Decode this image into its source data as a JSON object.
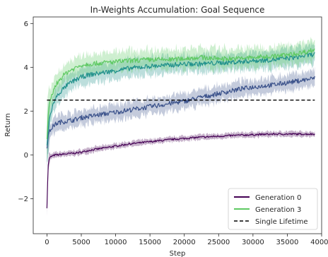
{
  "chart_data": {
    "type": "line",
    "title": "In-Weights Accumulation: Goal Sequence",
    "xlabel": "Step",
    "ylabel": "Return",
    "xlim": [
      -2000,
      40000
    ],
    "ylim": [
      -3.6,
      6.3
    ],
    "xticks": [
      0,
      5000,
      10000,
      15000,
      20000,
      25000,
      30000,
      35000,
      40000
    ],
    "xtick_labels": [
      "0",
      "5000",
      "10000",
      "15000",
      "20000",
      "25000",
      "30000",
      "35000",
      "40000"
    ],
    "yticks": [
      -2,
      0,
      2,
      4,
      6
    ],
    "ytick_labels": [
      "−2",
      "0",
      "2",
      "4",
      "6"
    ],
    "grid": false,
    "legend_position": "lower-right",
    "legend": [
      "Generation 0",
      "Generation 3",
      "Single Lifetime"
    ],
    "series": [
      {
        "name": "Generation 0",
        "in_legend": true,
        "color": "#440154",
        "band_width": 0.12,
        "x": [
          0,
          150,
          300,
          500,
          800,
          1200,
          1600,
          2000,
          3000,
          4000,
          5000,
          6000,
          8000,
          10000,
          12000,
          15000,
          18000,
          20000,
          22000,
          25000,
          28000,
          30000,
          33000,
          36000,
          39000
        ],
        "values": [
          -2.4,
          -0.6,
          -0.2,
          -0.1,
          -0.05,
          0.0,
          0.0,
          0.02,
          0.05,
          0.08,
          0.12,
          0.2,
          0.3,
          0.4,
          0.5,
          0.6,
          0.7,
          0.75,
          0.8,
          0.85,
          0.9,
          0.92,
          0.95,
          0.95,
          0.95
        ]
      },
      {
        "name": "",
        "in_legend": false,
        "color": "#3b528b",
        "band_width": 0.35,
        "x": [
          0,
          150,
          300,
          600,
          1000,
          1500,
          2000,
          3000,
          4000,
          5000,
          6000,
          8000,
          10000,
          12000,
          15000,
          18000,
          20000,
          22000,
          25000,
          28000,
          30000,
          33000,
          36000,
          39000
        ],
        "values": [
          0.4,
          0.8,
          1.0,
          1.2,
          1.35,
          1.45,
          1.5,
          1.55,
          1.6,
          1.7,
          1.75,
          1.85,
          1.95,
          2.05,
          2.2,
          2.35,
          2.45,
          2.6,
          2.8,
          3.0,
          3.1,
          3.2,
          3.35,
          3.5
        ]
      },
      {
        "name": "",
        "in_legend": false,
        "color": "#21918c",
        "band_width": 0.4,
        "x": [
          0,
          150,
          300,
          600,
          1000,
          1500,
          2000,
          3000,
          4000,
          5000,
          6000,
          8000,
          10000,
          12000,
          15000,
          18000,
          20000,
          22000,
          25000,
          28000,
          30000,
          33000,
          36000,
          39000
        ],
        "values": [
          0.5,
          1.0,
          1.5,
          2.0,
          2.4,
          2.7,
          2.9,
          3.2,
          3.4,
          3.55,
          3.65,
          3.75,
          3.85,
          3.95,
          4.05,
          4.1,
          4.15,
          4.15,
          4.2,
          4.25,
          4.3,
          4.35,
          4.45,
          4.6
        ]
      },
      {
        "name": "Generation 3",
        "in_legend": true,
        "color": "#5ec962",
        "band_width": 0.45,
        "x": [
          0,
          150,
          300,
          600,
          1000,
          1500,
          2000,
          3000,
          4000,
          5000,
          6000,
          8000,
          10000,
          12000,
          15000,
          18000,
          20000,
          22000,
          25000,
          28000,
          30000,
          33000,
          36000,
          39000
        ],
        "values": [
          0.8,
          1.6,
          2.1,
          2.6,
          3.0,
          3.3,
          3.5,
          3.8,
          3.95,
          4.1,
          4.15,
          4.2,
          4.25,
          4.3,
          4.35,
          4.35,
          4.4,
          4.45,
          4.4,
          4.4,
          4.45,
          4.5,
          4.6,
          4.8
        ]
      },
      {
        "name": "Single Lifetime",
        "in_legend": true,
        "color": "#000000",
        "dashed": true,
        "x": [
          0,
          39000
        ],
        "values": [
          2.5,
          2.5
        ]
      }
    ]
  }
}
